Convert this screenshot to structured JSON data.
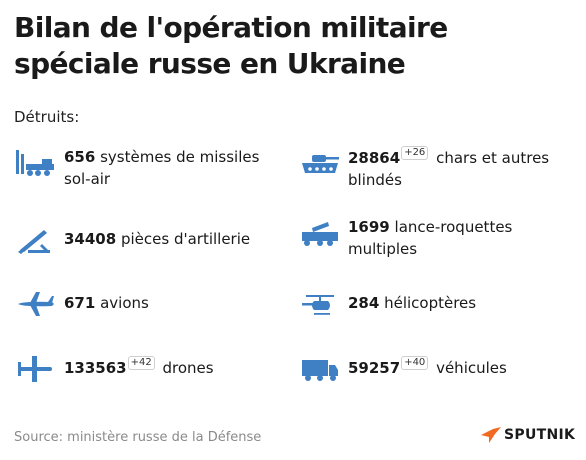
{
  "title": "Bilan de l'opération militaire spéciale russe en Ukraine",
  "subtitle": "Détruits:",
  "items": [
    {
      "icon": "missile-launcher-icon",
      "number": "656",
      "delta": "",
      "label": "systèmes de missiles sol-air"
    },
    {
      "icon": "tank-icon",
      "number": "28864",
      "delta": "+26",
      "label": "chars et autres blindés"
    },
    {
      "icon": "artillery-icon",
      "number": "34408",
      "delta": "",
      "label": "pièces d'artillerie"
    },
    {
      "icon": "rocket-launcher-truck-icon",
      "number": "1699",
      "delta": "",
      "label": "lance-roquettes multiples"
    },
    {
      "icon": "airplane-icon",
      "number": "671",
      "delta": "",
      "label": "avions"
    },
    {
      "icon": "helicopter-icon",
      "number": "284",
      "delta": "",
      "label": "hélicoptères"
    },
    {
      "icon": "drone-icon",
      "number": "133563",
      "delta": "+42",
      "label": "drones"
    },
    {
      "icon": "truck-icon",
      "number": "59257",
      "delta": "+40",
      "label": "véhicules"
    }
  ],
  "source": "Source: ministère russe de la Défense",
  "brand": "SPUTNIK",
  "colors": {
    "icon": "#3f7fc4",
    "brand_accent": "#f26a21"
  }
}
